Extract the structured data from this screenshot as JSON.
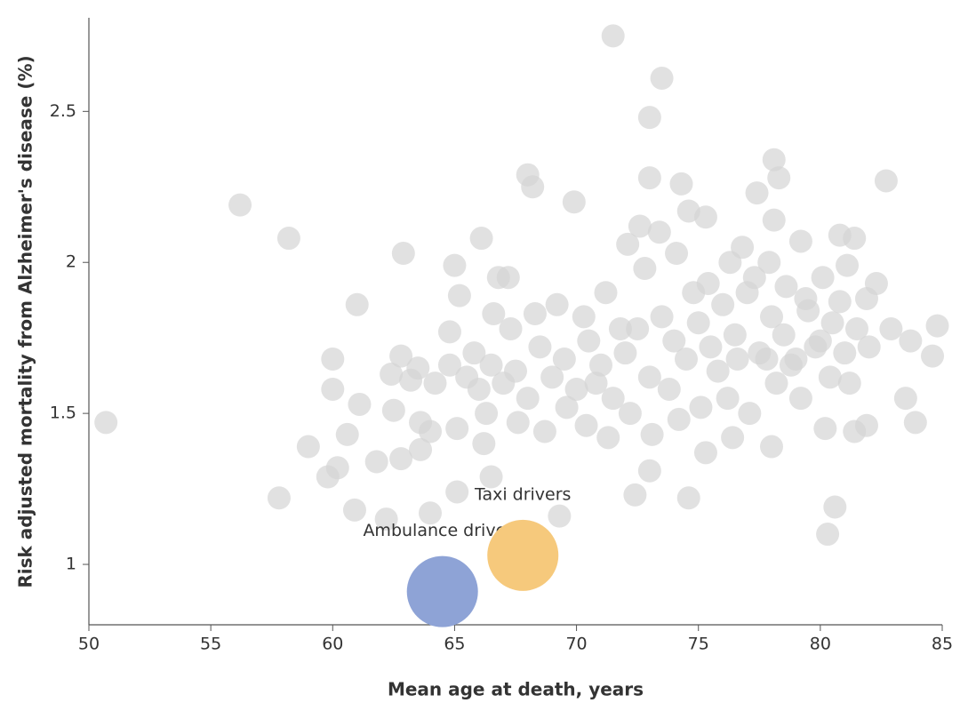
{
  "chart_data": {
    "type": "scatter",
    "x_label": "Mean age at death, years",
    "y_label": "Risk adjusted mortality from Alzheimer's disease (%)",
    "xlim": [
      50,
      85
    ],
    "xticks": [
      50,
      55,
      60,
      65,
      70,
      75,
      80,
      85
    ],
    "ylim": [
      0.8,
      2.81
    ],
    "yticks": [
      1,
      1.5,
      2,
      2.5
    ],
    "color": "#d4d4d4",
    "x": [
      50.7,
      56.2,
      58.2,
      57.8,
      59.0,
      60.0,
      60.0,
      61.0,
      59.8,
      60.2,
      60.9,
      61.1,
      60.6,
      61.8,
      62.2,
      62.5,
      62.4,
      62.8,
      62.9,
      62.8,
      63.2,
      63.6,
      64.0,
      64.0,
      63.6,
      65.1,
      65.0,
      65.1,
      64.8,
      65.2,
      66.1,
      66.5,
      66.2,
      66.8,
      66.6,
      67.3,
      68.0,
      68.2,
      69.3,
      69.9,
      71.5,
      73.5,
      73.0,
      73.0,
      74.3,
      75.3,
      74.6,
      72.4,
      73.0,
      78.1,
      78.3,
      77.4,
      78.1,
      79.2,
      80.8,
      81.4,
      81.1,
      82.7,
      82.3,
      81.9,
      84.8,
      84.6,
      83.9,
      83.5,
      80.6,
      80.3,
      78.0,
      80.2,
      81.4,
      81.9,
      76.4,
      75.3,
      83.7,
      82.9,
      65.5,
      66,
      66.5,
      67,
      67.5,
      68,
      68.5,
      69,
      69.5,
      70,
      70.5,
      71,
      71.5,
      72,
      72.5,
      73,
      73.5,
      74,
      74.5,
      75,
      75.5,
      76,
      76.5,
      77,
      77.5,
      78,
      78.5,
      79,
      79.5,
      80,
      80.5,
      81,
      81.5,
      82,
      67.2,
      68.3,
      69.2,
      70.3,
      71.2,
      72.1,
      72.6,
      73.4,
      74.1,
      74.6,
      75.4,
      76.3,
      76.8,
      77.3,
      77.9,
      78.6,
      79.4,
      80.1,
      80.8,
      66.3,
      67.6,
      68.7,
      69.6,
      70.4,
      71.3,
      72.2,
      73.1,
      74.2,
      75.1,
      76.2,
      77.1,
      78.2,
      79.2,
      80.4,
      81.2,
      64.2,
      64.8,
      63.5,
      65.8,
      70.8,
      73.8,
      75.8,
      77.8,
      79.8,
      74.8,
      71.8,
      72.8,
      76.6,
      78.8
    ],
    "values": [
      1.47,
      2.19,
      2.08,
      1.22,
      1.39,
      1.58,
      1.68,
      1.86,
      1.29,
      1.32,
      1.18,
      1.53,
      1.43,
      1.34,
      1.15,
      1.51,
      1.63,
      1.35,
      2.03,
      1.69,
      1.61,
      1.38,
      1.17,
      1.44,
      1.47,
      1.45,
      1.99,
      1.24,
      1.77,
      1.89,
      2.08,
      1.29,
      1.4,
      1.95,
      1.83,
      1.78,
      2.29,
      2.25,
      1.16,
      2.2,
      2.75,
      2.61,
      2.48,
      2.28,
      2.26,
      2.15,
      1.22,
      1.23,
      1.31,
      2.34,
      2.28,
      2.23,
      2.14,
      2.07,
      2.09,
      2.08,
      1.99,
      2.27,
      1.93,
      1.88,
      1.79,
      1.69,
      1.47,
      1.55,
      1.19,
      1.1,
      1.39,
      1.45,
      1.44,
      1.46,
      1.42,
      1.37,
      1.74,
      1.78,
      1.62,
      1.58,
      1.66,
      1.6,
      1.64,
      1.55,
      1.72,
      1.62,
      1.68,
      1.58,
      1.74,
      1.66,
      1.55,
      1.7,
      1.78,
      1.62,
      1.82,
      1.74,
      1.68,
      1.8,
      1.72,
      1.86,
      1.76,
      1.9,
      1.7,
      1.82,
      1.76,
      1.68,
      1.84,
      1.74,
      1.8,
      1.7,
      1.78,
      1.72,
      1.95,
      1.83,
      1.86,
      1.82,
      1.9,
      2.06,
      2.12,
      2.1,
      2.03,
      2.17,
      1.93,
      2.0,
      2.05,
      1.95,
      2.0,
      1.92,
      1.88,
      1.95,
      1.87,
      1.5,
      1.47,
      1.44,
      1.52,
      1.46,
      1.42,
      1.5,
      1.43,
      1.48,
      1.52,
      1.55,
      1.5,
      1.6,
      1.55,
      1.62,
      1.6,
      1.6,
      1.66,
      1.65,
      1.7,
      1.6,
      1.58,
      1.64,
      1.68,
      1.72,
      1.9,
      1.78,
      1.98,
      1.68,
      1.66
    ],
    "annotations": [
      {
        "text": "Ambulance drivers",
        "x": 64.5,
        "y": 0.91,
        "color": "#8ea3d6"
      },
      {
        "text": "Taxi drivers",
        "x": 67.8,
        "y": 1.03,
        "color": "#f6c97c"
      }
    ]
  }
}
